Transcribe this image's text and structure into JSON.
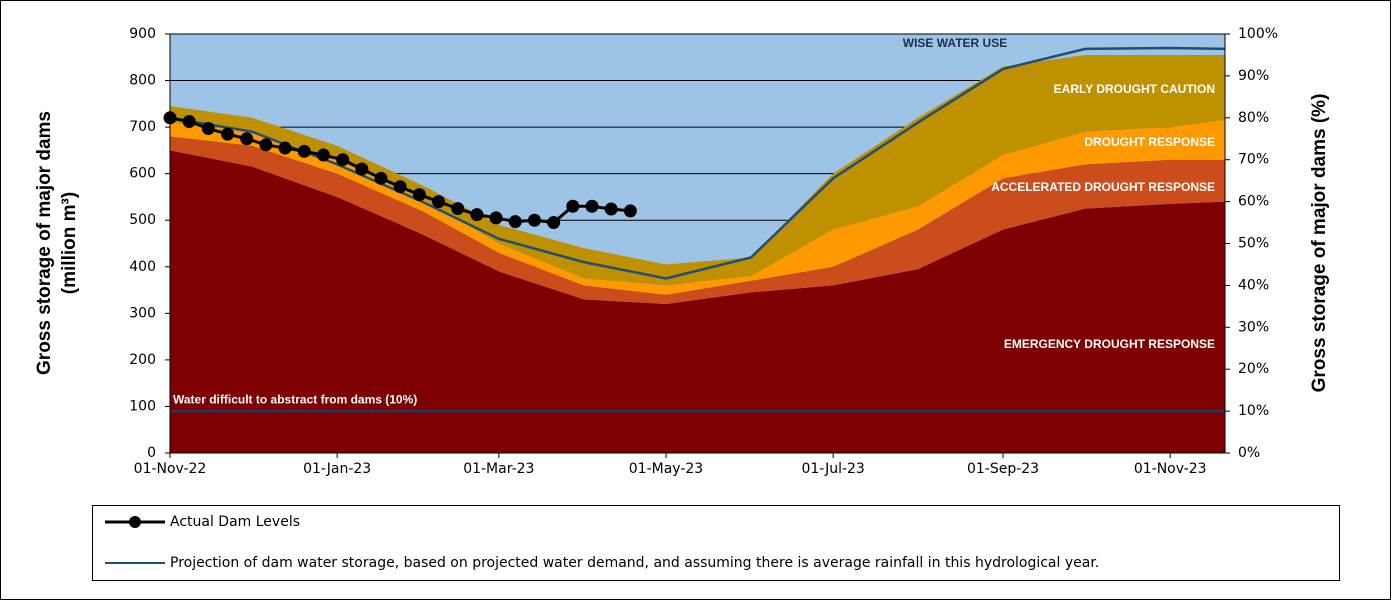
{
  "chart_data": {
    "type": "area",
    "stacked": true,
    "x": [
      "2022-11-01",
      "2022-12-01",
      "2023-01-01",
      "2023-02-01",
      "2023-03-01",
      "2023-04-01",
      "2023-05-01",
      "2023-06-01",
      "2023-07-01",
      "2023-08-01",
      "2023-09-01",
      "2023-10-01",
      "2023-11-01",
      "2023-11-21"
    ],
    "xlim": [
      "2022-11-01",
      "2023-11-21"
    ],
    "xticks": [
      {
        "value": "2022-11-01",
        "label": "01-Nov-22"
      },
      {
        "value": "2023-01-01",
        "label": "01-Jan-23"
      },
      {
        "value": "2023-03-01",
        "label": "01-Mar-23"
      },
      {
        "value": "2023-05-01",
        "label": "01-May-23"
      },
      {
        "value": "2023-07-01",
        "label": "01-Jul-23"
      },
      {
        "value": "2023-09-01",
        "label": "01-Sep-23"
      },
      {
        "value": "2023-11-01",
        "label": "01-Nov-23"
      }
    ],
    "ylim": [
      0,
      900
    ],
    "yticks": [
      0,
      100,
      200,
      300,
      400,
      500,
      600,
      700,
      800,
      900
    ],
    "y_label": [
      "Gross storage of major dams",
      "(million m³)"
    ],
    "y2lim": [
      0,
      100
    ],
    "y2ticks": [
      {
        "value": 0,
        "label": "0%"
      },
      {
        "value": 10,
        "label": "10%"
      },
      {
        "value": 20,
        "label": "20%"
      },
      {
        "value": 30,
        "label": "30%"
      },
      {
        "value": 40,
        "label": "40%"
      },
      {
        "value": 50,
        "label": "50%"
      },
      {
        "value": 60,
        "label": "60%"
      },
      {
        "value": 70,
        "label": "70%"
      },
      {
        "value": 80,
        "label": "80%"
      },
      {
        "value": 90,
        "label": "90%"
      },
      {
        "value": 100,
        "label": "100%"
      }
    ],
    "y2_label": "Gross storage of major dams (%)",
    "grid": true,
    "background_label": "WISE WATER USE",
    "background_color": "#9dc3e6",
    "series": [
      {
        "name": "EMERGENCY DROUGHT RESPONSE",
        "color": "#7f0000",
        "values": [
          650,
          615,
          550,
          470,
          390,
          330,
          320,
          345,
          360,
          395,
          480,
          525,
          535,
          540
        ]
      },
      {
        "name": "ACCELERATED DROUGHT RESPONSE",
        "color": "#cc4c1c",
        "values": [
          30,
          45,
          50,
          50,
          40,
          30,
          20,
          25,
          40,
          85,
          110,
          95,
          95,
          90
        ]
      },
      {
        "name": "DROUGHT RESPONSE",
        "color": "#ff9900",
        "values": [
          30,
          30,
          30,
          25,
          20,
          15,
          20,
          10,
          80,
          50,
          50,
          70,
          70,
          85
        ]
      },
      {
        "name": "EARLY DROUGHT CAUTION",
        "color": "#bf9000",
        "values": [
          35,
          30,
          30,
          30,
          40,
          65,
          45,
          40,
          120,
          190,
          190,
          165,
          155,
          140
        ]
      }
    ],
    "lines": [
      {
        "name": "Projection of dam water storage, based on projected water demand, and assuming there is average rainfall in this hydrological year.",
        "color": "#1f4e79",
        "markers": false,
        "x": [
          "2022-11-01",
          "2022-12-01",
          "2023-01-01",
          "2023-02-01",
          "2023-03-01",
          "2023-04-01",
          "2023-05-01",
          "2023-06-01",
          "2023-07-01",
          "2023-08-01",
          "2023-09-01",
          "2023-10-01",
          "2023-11-01",
          "2023-11-21"
        ],
        "values": [
          720,
          690,
          620,
          540,
          460,
          410,
          375,
          420,
          590,
          710,
          825,
          868,
          870,
          868
        ]
      },
      {
        "name": "Actual Dam Levels",
        "color": "#000000",
        "markers": true,
        "x": [
          "2022-11-01",
          "2022-11-08",
          "2022-11-15",
          "2022-11-22",
          "2022-11-29",
          "2022-12-06",
          "2022-12-13",
          "2022-12-20",
          "2022-12-27",
          "2023-01-03",
          "2023-01-10",
          "2023-01-17",
          "2023-01-24",
          "2023-01-31",
          "2023-02-07",
          "2023-02-14",
          "2023-02-21",
          "2023-02-28",
          "2023-03-07",
          "2023-03-14",
          "2023-03-21",
          "2023-03-28",
          "2023-04-04",
          "2023-04-11",
          "2023-04-18"
        ],
        "values": [
          720,
          712,
          697,
          685,
          675,
          662,
          655,
          648,
          640,
          630,
          610,
          590,
          572,
          555,
          540,
          525,
          512,
          505,
          497,
          500,
          495,
          530,
          530,
          524,
          520
        ]
      }
    ],
    "reference_line": {
      "label": "Water difficult to abstract from dams (10%)",
      "value": 90,
      "color": "#1f3864"
    }
  }
}
